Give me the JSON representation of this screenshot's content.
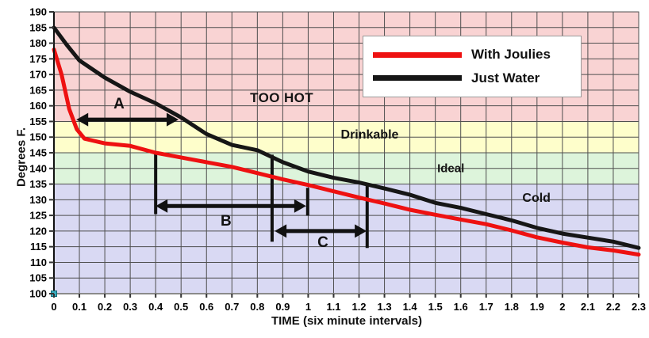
{
  "chart_data": {
    "type": "line",
    "title": "",
    "xlabel": "TIME (six minute intervals)",
    "ylabel": "Degrees F.",
    "xlim": [
      0,
      2.3
    ],
    "ylim": [
      100,
      190
    ],
    "grid": true,
    "legend_position": "top-right",
    "x_ticks": [
      "0",
      "0.1",
      "0.2",
      "0.3",
      "0.4",
      "0.5",
      "0.6",
      "0.7",
      "0.8",
      "0.9",
      "1",
      "1.1",
      "1.2",
      "1.3",
      "1.4",
      "1.5",
      "1.6",
      "1.7",
      "1.8",
      "1.9",
      "2",
      "2.1",
      "2.2",
      "2.3"
    ],
    "y_ticks": [
      "100",
      "105",
      "110",
      "115",
      "120",
      "125",
      "130",
      "135",
      "140",
      "145",
      "150",
      "155",
      "160",
      "165",
      "170",
      "175",
      "180",
      "185",
      "190"
    ],
    "series": [
      {
        "name": "With Joulies",
        "color": "#ee1111",
        "x": [
          0,
          0.03,
          0.06,
          0.09,
          0.12,
          0.2,
          0.3,
          0.4,
          0.5,
          0.6,
          0.7,
          0.8,
          0.9,
          1.0,
          1.1,
          1.2,
          1.3,
          1.4,
          1.5,
          1.6,
          1.7,
          1.8,
          1.9,
          2.0,
          2.1,
          2.2,
          2.3
        ],
        "values": [
          178,
          170,
          159,
          152.5,
          149.5,
          148,
          147.2,
          145,
          143.5,
          142,
          140.5,
          138.5,
          136.5,
          134.7,
          132.7,
          130.7,
          128.8,
          126.8,
          125.2,
          123.7,
          122.2,
          120.2,
          118,
          116.3,
          114.8,
          113.8,
          112.5
        ]
      },
      {
        "name": "Just Water",
        "color": "#161616",
        "x": [
          0,
          0.05,
          0.1,
          0.2,
          0.3,
          0.4,
          0.5,
          0.6,
          0.7,
          0.8,
          0.9,
          1.0,
          1.1,
          1.2,
          1.3,
          1.4,
          1.5,
          1.6,
          1.7,
          1.8,
          1.9,
          2.0,
          2.1,
          2.2,
          2.3
        ],
        "values": [
          185,
          179.5,
          174.5,
          169,
          164.5,
          160.8,
          156.3,
          151,
          147.5,
          145.8,
          142,
          139,
          137,
          135.5,
          133.6,
          131.6,
          129,
          127.4,
          125.4,
          123.4,
          121,
          119.2,
          117.9,
          116.6,
          114.6
        ]
      }
    ],
    "zones": [
      {
        "label": "TOO HOT",
        "from": 155,
        "to": 190,
        "color": "#f9d3d3",
        "label_at": {
          "x": 0.896,
          "y": 162.4
        }
      },
      {
        "label": "Drinkable",
        "from": 145,
        "to": 155,
        "color": "#fefecb",
        "label_at": {
          "x": 1.242,
          "y": 150.6
        }
      },
      {
        "label": "Ideal",
        "from": 135,
        "to": 145,
        "color": "#ddf4db",
        "label_at": {
          "x": 1.561,
          "y": 140.0
        }
      },
      {
        "label": "Cold",
        "from": 100,
        "to": 135,
        "color": "#d9d9f3",
        "label_at": {
          "x": 1.898,
          "y": 130.4
        }
      }
    ],
    "annotations": {
      "arrows": [
        {
          "label": "A",
          "y": 155.6,
          "x1": 0.088,
          "x2": 0.49,
          "label_at": {
            "x": 0.256,
            "y": 160.4
          }
        },
        {
          "label": "B",
          "y": 128.0,
          "x1": 0.4,
          "x2": 0.992,
          "label_at": {
            "x": 0.677,
            "y": 123.0
          }
        },
        {
          "label": "C",
          "y": 120.0,
          "x1": 0.868,
          "x2": 1.23,
          "label_at": {
            "x": 1.058,
            "y": 116.2
          }
        }
      ],
      "bars": [
        {
          "x": 0.4,
          "v1": 144.9,
          "v2": 125.4
        },
        {
          "x": 0.998,
          "v1": 133.8,
          "v2": 124.9
        },
        {
          "x": 0.858,
          "v1": 144.4,
          "v2": 116.6
        },
        {
          "x": 1.232,
          "v1": 135.0,
          "v2": 114.6
        }
      ]
    },
    "origin_marker": {
      "x": 0,
      "y": 100,
      "color": "#3aacbe"
    },
    "colors": {
      "grid": "#4f4f4f",
      "axis_left": "#111111",
      "axis_bottom": "#8a8a8a"
    }
  }
}
